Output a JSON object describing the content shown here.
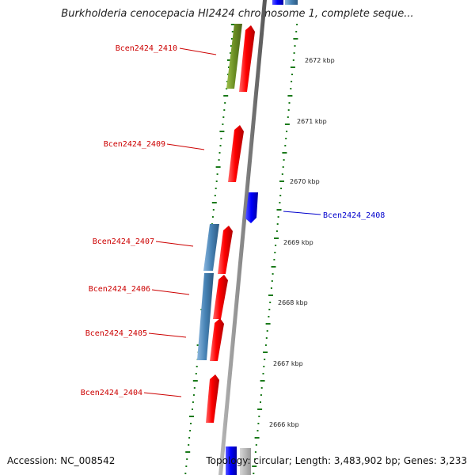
{
  "title": "Burkholderia cenocepacia HI2424 chromosome 1, complete seque...",
  "footer": {
    "accession": "Accession: NC_008542",
    "summary": "Topology: circular; Length: 3,483,902 bp; Genes: 3,233"
  },
  "colors": {
    "forward_gene": "#ff0000",
    "reverse_gene": "#0000ff",
    "gc_skew_dash": "#1a7a1a",
    "backbone": "#888888",
    "olive_feature": "#6b8e23",
    "steel_feature": "#4682b4"
  },
  "kbp_ticks": [
    "2672 kbp",
    "2671 kbp",
    "2670 kbp",
    "2669 kbp",
    "2668 kbp",
    "2667 kbp",
    "2666 kbp"
  ],
  "gene_labels": [
    {
      "text": "Bcen2424_2410",
      "strand": "forward"
    },
    {
      "text": "Bcen2424_2409",
      "strand": "forward"
    },
    {
      "text": "Bcen2424_2408",
      "strand": "reverse"
    },
    {
      "text": "Bcen2424_2407",
      "strand": "forward"
    },
    {
      "text": "Bcen2424_2406",
      "strand": "forward"
    },
    {
      "text": "Bcen2424_2405",
      "strand": "forward"
    },
    {
      "text": "Bcen2424_2404",
      "strand": "forward"
    }
  ]
}
